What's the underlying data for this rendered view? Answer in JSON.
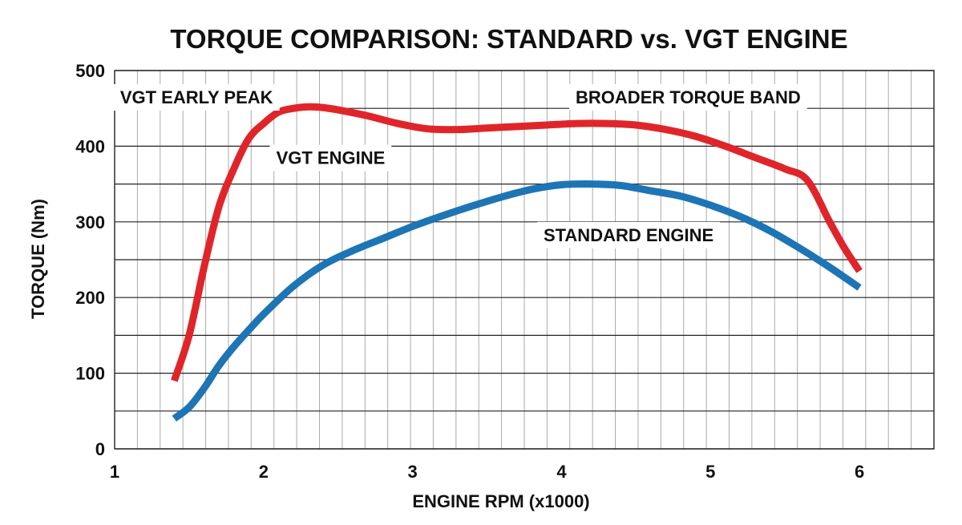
{
  "chart_data": {
    "type": "line",
    "title": "TORQUE COMPARISON: STANDARD vs. VGT ENGINE",
    "xlabel": "ENGINE RPM (x1000)",
    "ylabel": "TORQUE (Nm)",
    "xlim": [
      1,
      6.5
    ],
    "ylim": [
      0,
      500
    ],
    "xticks": [
      1,
      2,
      3,
      4,
      5,
      6
    ],
    "yticks": [
      0,
      100,
      200,
      300,
      400,
      500
    ],
    "grid": true,
    "series": [
      {
        "name": "VGT ENGINE",
        "color": "#e0252a",
        "x": [
          1.4,
          1.5,
          1.6,
          1.7,
          1.8,
          1.9,
          2.0,
          2.1,
          2.2,
          2.3,
          2.4,
          2.5,
          2.7,
          2.9,
          3.1,
          3.3,
          3.5,
          3.7,
          3.9,
          4.1,
          4.3,
          4.5,
          4.7,
          4.9,
          5.1,
          5.3,
          5.5,
          5.65,
          5.8,
          5.9,
          6.0
        ],
        "y": [
          90,
          150,
          240,
          320,
          370,
          410,
          430,
          445,
          450,
          452,
          451,
          448,
          440,
          430,
          423,
          422,
          424,
          426,
          428,
          430,
          430,
          428,
          422,
          413,
          400,
          385,
          370,
          355,
          300,
          265,
          235
        ]
      },
      {
        "name": "STANDARD ENGINE",
        "color": "#1d75b5",
        "x": [
          1.4,
          1.5,
          1.6,
          1.7,
          1.8,
          1.9,
          2.0,
          2.2,
          2.4,
          2.6,
          2.8,
          3.0,
          3.2,
          3.4,
          3.6,
          3.8,
          4.0,
          4.2,
          4.4,
          4.6,
          4.8,
          5.0,
          5.2,
          5.4,
          5.6,
          5.8,
          6.0
        ],
        "y": [
          40,
          55,
          80,
          110,
          135,
          157,
          178,
          215,
          243,
          262,
          278,
          294,
          308,
          321,
          333,
          343,
          349,
          350,
          348,
          341,
          334,
          322,
          307,
          288,
          265,
          240,
          213
        ]
      }
    ],
    "annotations": [
      {
        "text": "VGT EARLY PEAK",
        "x": 1.55,
        "y": 465
      },
      {
        "text": "BROADER TORQUE BAND",
        "x": 4.85,
        "y": 465
      },
      {
        "text": "VGT ENGINE",
        "x": 2.45,
        "y": 385
      },
      {
        "text": "STANDARD ENGINE",
        "x": 4.45,
        "y": 283
      }
    ]
  }
}
